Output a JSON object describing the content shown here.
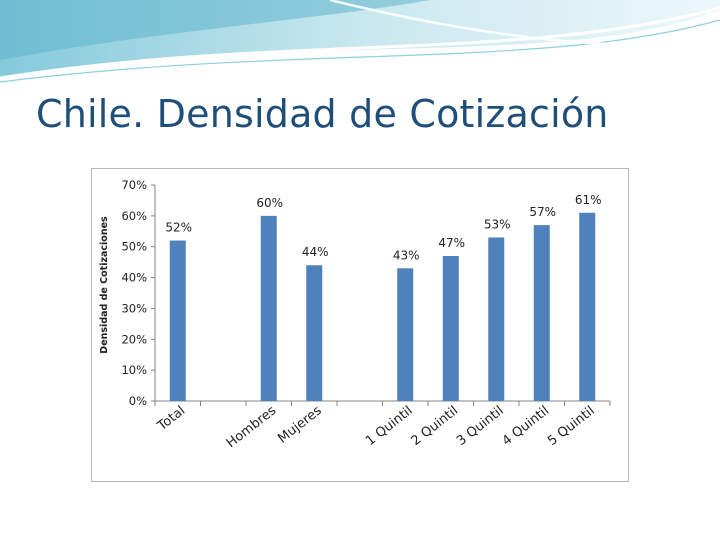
{
  "slide": {
    "title": "Chile. Densidad de Cotización"
  },
  "chart_data": {
    "type": "bar",
    "title": "",
    "xlabel": "",
    "ylabel": "Densidad de Cotizaciones",
    "ylim": [
      0,
      70
    ],
    "yticks": [
      0,
      10,
      20,
      30,
      40,
      50,
      60,
      70
    ],
    "ytick_labels": [
      "0%",
      "10%",
      "20%",
      "30%",
      "40%",
      "50%",
      "60%",
      "70%"
    ],
    "categories": [
      "Total",
      "",
      "Hombres",
      "Mujeres",
      "",
      "1 Quintil",
      "2 Quintil",
      "3 Quintil",
      "4 Quintil",
      "5 Quintil"
    ],
    "values": [
      52,
      null,
      60,
      44,
      null,
      43,
      47,
      53,
      57,
      61
    ],
    "data_labels": [
      "52%",
      "",
      "60%",
      "44%",
      "",
      "43%",
      "47%",
      "53%",
      "57%",
      "61%"
    ],
    "grid": false,
    "legend": "none",
    "colors": {
      "bar": "#4f81bd",
      "axis": "#868686",
      "title": "#1f4e79"
    }
  }
}
